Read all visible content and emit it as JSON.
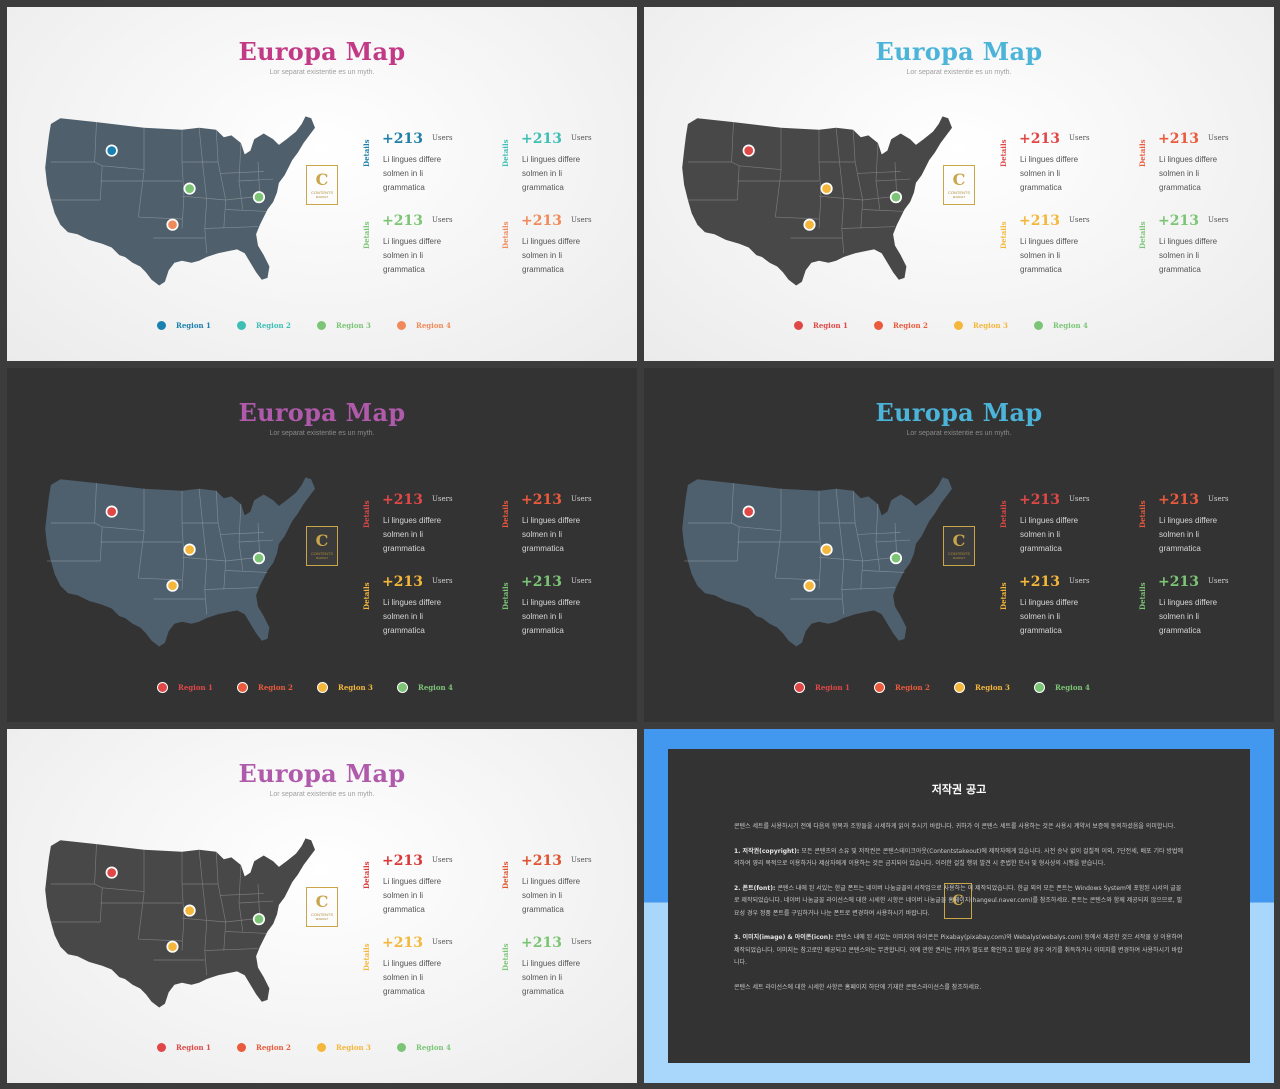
{
  "common": {
    "title": "Europa Map",
    "subtitle": "Lor separat existentie es un myth.",
    "logo_letter": "C",
    "logo_word": "CONTENTS",
    "logo_sub": "MARKET",
    "stat_value": "+213",
    "stat_unit": "Users",
    "stat_label": "Details",
    "stat_desc": "Li lingues differe\nsolmen in li\ngrammatica",
    "legend_labels": [
      "Region 1",
      "Region 2",
      "Region 3",
      "Region 4"
    ]
  },
  "slides": [
    {
      "theme": "light",
      "title_color": "#c23a86",
      "map_color": "#4f5f6b",
      "stat_colors": [
        "#1f7fa8",
        "#3dbfb5",
        "#7cc576",
        "#f08a5a"
      ],
      "marker_colors": [
        "#1a80b0",
        "#7cc576",
        "#f08a5a",
        "#7cc576"
      ],
      "legend_colors": [
        "#1a80b0",
        "#3dbfb5",
        "#7cc576",
        "#f08a5a"
      ]
    },
    {
      "theme": "light",
      "title_color": "#4cb4d8",
      "map_color": "#484848",
      "stat_colors": [
        "#e04848",
        "#ea5a3c",
        "#f4b73b",
        "#7cc576"
      ],
      "marker_colors": [
        "#e04848",
        "#f4b73b",
        "#f4b73b",
        "#7cc576"
      ],
      "legend_colors": [
        "#e04848",
        "#ea5a3c",
        "#f4b73b",
        "#7cc576"
      ]
    },
    {
      "theme": "dark",
      "title_color": "#b05aac",
      "map_color": "#4e5f6d",
      "stat_colors": [
        "#e04848",
        "#ea5a3c",
        "#f4b73b",
        "#7cc576"
      ],
      "marker_colors": [
        "#e04848",
        "#f4b73b",
        "#f4b73b",
        "#7cc576"
      ],
      "legend_colors": [
        "#e04848",
        "#ea5a3c",
        "#f4b73b",
        "#7cc576"
      ]
    },
    {
      "theme": "dark",
      "title_color": "#4cb4d8",
      "map_color": "#4e5f6d",
      "stat_colors": [
        "#e04848",
        "#ea5a3c",
        "#f4b73b",
        "#7cc576"
      ],
      "marker_colors": [
        "#e04848",
        "#f4b73b",
        "#f4b73b",
        "#7cc576"
      ],
      "legend_colors": [
        "#e04848",
        "#ea5a3c",
        "#f4b73b",
        "#7cc576"
      ]
    },
    {
      "theme": "light",
      "title_color": "#b05aac",
      "map_color": "#484848",
      "stat_colors": [
        "#d83a3a",
        "#e0532e",
        "#f4b73b",
        "#7cc576"
      ],
      "marker_colors": [
        "#e04848",
        "#f4b73b",
        "#f4b73b",
        "#7cc576"
      ],
      "legend_colors": [
        "#e04848",
        "#ea5a3c",
        "#f4b73b",
        "#7cc576"
      ]
    }
  ],
  "notice": {
    "title": "저작권 공고",
    "paragraphs": [
      {
        "head": "",
        "text": "콘텐스 세트를 사용하시기 전에 다음의 항목과 조항들을 시세하게 읽어 주시기 바랍니다. 귀하가 이 콘텐스 세트를 사용하는 것은 사용시 계약서 보증에 동의하셨음을 의미합니다."
      },
      {
        "head": "1. 저작권(copyright): ",
        "text": "모든 콘텐츠의 소유 및 저작권은 콘텐스테이크아웃(Contentstakeout)에 제작자에게 있습니다. 사전 승낙 없이 걸칠적 이외, 7단전세, 배포 기타 방법에 의하여 영리 목적으로 이용하거나 제삼자에게 이용하는 것은 금지되어 있습니다. 이러한 걸칠 행위 발견 시 준법한 민사 및 형사상의 시행을 받습니다."
      },
      {
        "head": "2. 폰트(font): ",
        "text": "콘텐스 내에 된 서있는 한글 폰트는 네이버 나눔글꼴의 서작업으로 사용하는 이 제작되었습니다. 한글 외의 모든 폰트는 Windows System에 포함된 시서의 글꼴로 제작되었습니다. 네이버 나눔글꼴 라이선스에 대한 시세한 시항은 네이버 나눔글꼴 홈페이지(hangeul.naver.com)를 참조하세요. 폰트는 콘텐스와 함께 제공되지 않으므로, 필요성 경우 정품 폰트를 구입하거나 나눈 폰트로 변경하여 사용하시기 바랍니다."
      },
      {
        "head": "3. 이미지(image) & 아이콘(icon): ",
        "text": "콘텐스 내에 된 서있는 이미지와 아이콘은 Pixabay(pixabay.com)와 Webalys(webalys.com) 등에서 제공한 것으 서작물 상 이용하여 제작되었습니다. 이미지는 참고로만 제공되고 콘텐스와는 무관합니다. 이에 관한 권리는 귀하가 별도로 확인하고 필요성 경우 여기를 취득하거나 이미지를 변경하여 사용하시기 바랍니다."
      },
      {
        "head": "",
        "text": "콘텐스 세트 라이선스에 대한 시세한 사항은 홈페이지 하단에 기재한 콘텐스라이선스를 참조하세요."
      }
    ]
  }
}
